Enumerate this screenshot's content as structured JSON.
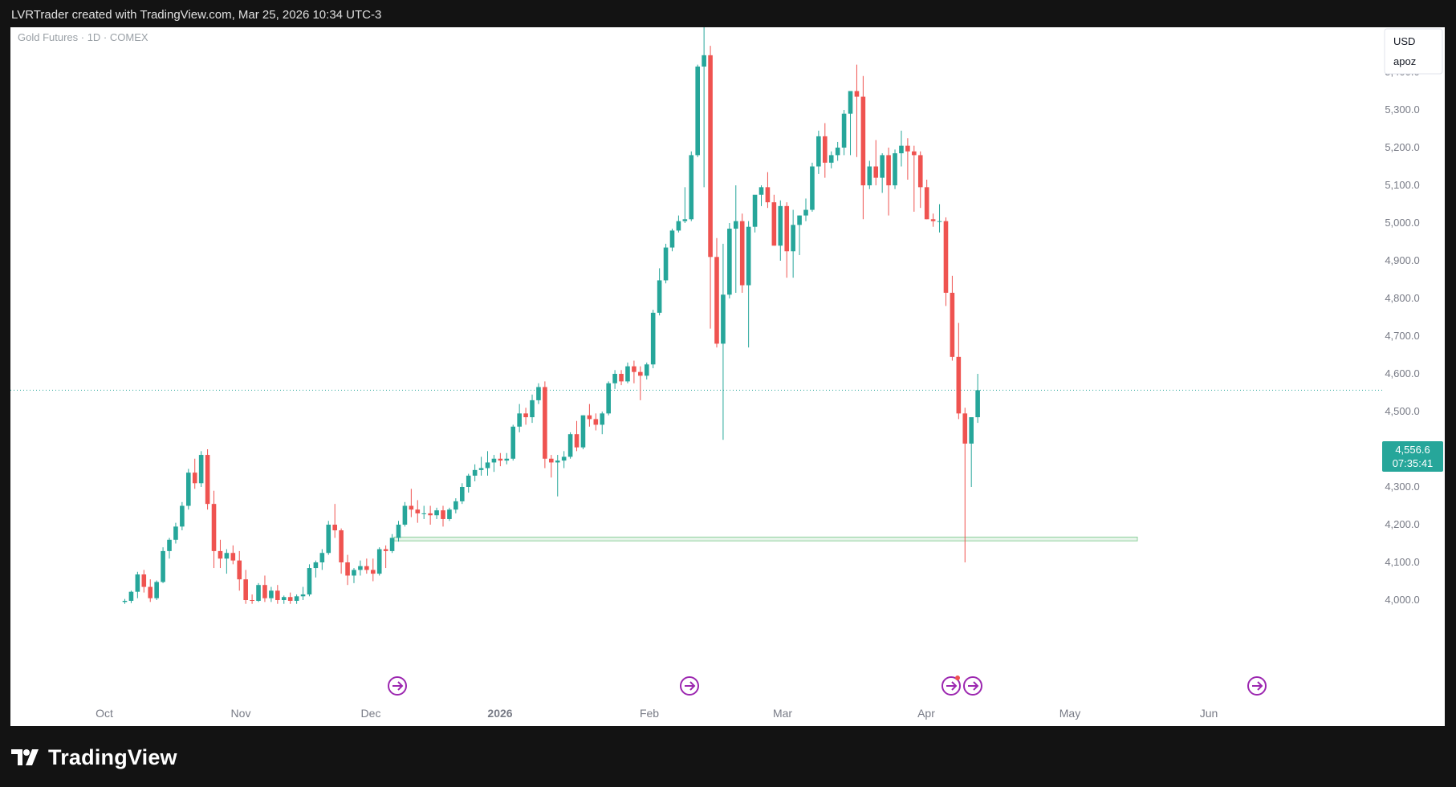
{
  "header": {
    "text": "LVRTrader created with TradingView.com, Mar 25, 2026 10:34 UTC-3"
  },
  "chart": {
    "symbol_label": "Gold Futures · 1D · COMEX",
    "currency_button": "USD",
    "indicator_button": "apoz",
    "last_price_label": "4,556.6",
    "countdown_label": "07:35:41",
    "colors": {
      "up": "#26a69a",
      "down": "#ef5350",
      "price_line": "#26a69a",
      "zone_fill": "#e6f4e9",
      "zone_border": "#8fd19e",
      "event_icon": "#9c27b0"
    }
  },
  "footer": {
    "brand": "TradingView"
  },
  "chart_data": {
    "type": "candlestick",
    "title": "Gold Futures · 1D · COMEX",
    "x_tick_labels": [
      "Oct",
      "Nov",
      "Dec",
      "2026",
      "Feb",
      "Mar",
      "Apr",
      "May",
      "Jun"
    ],
    "y_tick_labels": [
      "4,000.0",
      "4,100.0",
      "4,200.0",
      "4,300.0",
      "4,400.0",
      "4,500.0",
      "4,600.0",
      "4,700.0",
      "4,800.0",
      "4,900.0",
      "5,000.0",
      "5,100.0",
      "5,200.0",
      "5,300.0",
      "5,400.0"
    ],
    "ylim": [
      3990,
      5540
    ],
    "last_price": 4556.6,
    "support_zone": [
      4157,
      4167
    ],
    "candles_ohlc": [
      [
        3995,
        4003,
        3990,
        3998
      ],
      [
        3998,
        4025,
        3992,
        4022
      ],
      [
        4022,
        4075,
        4005,
        4068
      ],
      [
        4068,
        4080,
        4020,
        4035
      ],
      [
        4035,
        4055,
        3995,
        4005
      ],
      [
        4005,
        4052,
        4000,
        4048
      ],
      [
        4048,
        4140,
        4045,
        4130
      ],
      [
        4130,
        4165,
        4110,
        4160
      ],
      [
        4160,
        4205,
        4150,
        4195
      ],
      [
        4195,
        4260,
        4185,
        4250
      ],
      [
        4250,
        4348,
        4240,
        4338
      ],
      [
        4338,
        4375,
        4295,
        4310
      ],
      [
        4310,
        4395,
        4300,
        4385
      ],
      [
        4385,
        4400,
        4240,
        4255
      ],
      [
        4255,
        4290,
        4085,
        4130
      ],
      [
        4130,
        4160,
        4085,
        4110
      ],
      [
        4110,
        4135,
        4070,
        4125
      ],
      [
        4125,
        4145,
        4095,
        4105
      ],
      [
        4105,
        4130,
        4025,
        4055
      ],
      [
        4055,
        4080,
        3990,
        4000
      ],
      [
        4000,
        4015,
        3990,
        3998
      ],
      [
        3998,
        4045,
        3995,
        4040
      ],
      [
        4040,
        4065,
        3995,
        4005
      ],
      [
        4005,
        4035,
        3995,
        4025
      ],
      [
        4025,
        4040,
        3990,
        4000
      ],
      [
        4000,
        4012,
        3990,
        4008
      ],
      [
        4008,
        4020,
        3990,
        3998
      ],
      [
        3998,
        4015,
        3990,
        4010
      ],
      [
        4010,
        4035,
        4000,
        4015
      ],
      [
        4015,
        4095,
        4010,
        4085
      ],
      [
        4085,
        4105,
        4060,
        4100
      ],
      [
        4100,
        4135,
        4080,
        4125
      ],
      [
        4125,
        4210,
        4120,
        4200
      ],
      [
        4200,
        4255,
        4165,
        4185
      ],
      [
        4185,
        4190,
        4070,
        4100
      ],
      [
        4100,
        4120,
        4040,
        4065
      ],
      [
        4065,
        4085,
        4045,
        4080
      ],
      [
        4080,
        4105,
        4065,
        4090
      ],
      [
        4090,
        4110,
        4070,
        4080
      ],
      [
        4080,
        4110,
        4050,
        4070
      ],
      [
        4070,
        4140,
        4065,
        4135
      ],
      [
        4135,
        4145,
        4085,
        4130
      ],
      [
        4130,
        4175,
        4125,
        4165
      ],
      [
        4165,
        4210,
        4155,
        4200
      ],
      [
        4200,
        4260,
        4195,
        4250
      ],
      [
        4250,
        4295,
        4220,
        4240
      ],
      [
        4240,
        4265,
        4205,
        4230
      ],
      [
        4230,
        4250,
        4215,
        4230
      ],
      [
        4230,
        4250,
        4200,
        4225
      ],
      [
        4225,
        4245,
        4215,
        4238
      ],
      [
        4238,
        4250,
        4195,
        4215
      ],
      [
        4215,
        4245,
        4210,
        4240
      ],
      [
        4240,
        4270,
        4230,
        4262
      ],
      [
        4262,
        4310,
        4255,
        4300
      ],
      [
        4300,
        4335,
        4285,
        4330
      ],
      [
        4330,
        4360,
        4315,
        4345
      ],
      [
        4345,
        4380,
        4330,
        4350
      ],
      [
        4350,
        4395,
        4330,
        4365
      ],
      [
        4365,
        4385,
        4340,
        4375
      ],
      [
        4375,
        4390,
        4355,
        4370
      ],
      [
        4370,
        4390,
        4360,
        4375
      ],
      [
        4375,
        4465,
        4370,
        4460
      ],
      [
        4460,
        4520,
        4445,
        4495
      ],
      [
        4495,
        4510,
        4465,
        4485
      ],
      [
        4485,
        4545,
        4470,
        4530
      ],
      [
        4530,
        4575,
        4520,
        4565
      ],
      [
        4565,
        4580,
        4350,
        4375
      ],
      [
        4375,
        4385,
        4325,
        4365
      ],
      [
        4365,
        4385,
        4275,
        4370
      ],
      [
        4370,
        4395,
        4350,
        4380
      ],
      [
        4380,
        4445,
        4375,
        4440
      ],
      [
        4440,
        4475,
        4395,
        4405
      ],
      [
        4405,
        4490,
        4400,
        4490
      ],
      [
        4490,
        4520,
        4460,
        4480
      ],
      [
        4480,
        4495,
        4450,
        4465
      ],
      [
        4465,
        4500,
        4440,
        4495
      ],
      [
        4495,
        4580,
        4490,
        4575
      ],
      [
        4575,
        4610,
        4560,
        4600
      ],
      [
        4600,
        4610,
        4570,
        4580
      ],
      [
        4580,
        4630,
        4575,
        4620
      ],
      [
        4620,
        4635,
        4575,
        4605
      ],
      [
        4605,
        4620,
        4530,
        4595
      ],
      [
        4595,
        4630,
        4585,
        4625
      ],
      [
        4625,
        4770,
        4615,
        4762
      ],
      [
        4762,
        4880,
        4755,
        4848
      ],
      [
        4848,
        4945,
        4840,
        4935
      ],
      [
        4935,
        4985,
        4925,
        4980
      ],
      [
        4980,
        5020,
        4975,
        5005
      ],
      [
        5005,
        5095,
        5000,
        5010
      ],
      [
        5010,
        5190,
        5005,
        5180
      ],
      [
        5180,
        5420,
        5175,
        5415
      ],
      [
        5415,
        5540,
        5095,
        5445
      ],
      [
        5445,
        5470,
        4720,
        4910
      ],
      [
        4910,
        4960,
        4670,
        4680
      ],
      [
        4680,
        4945,
        4425,
        4810
      ],
      [
        4810,
        5000,
        4800,
        4985
      ],
      [
        4985,
        5100,
        4815,
        5005
      ],
      [
        5005,
        5025,
        4815,
        4835
      ],
      [
        4835,
        5005,
        4670,
        4990
      ],
      [
        4990,
        5070,
        4975,
        5075
      ],
      [
        5075,
        5100,
        5045,
        5095
      ],
      [
        5095,
        5135,
        5040,
        5055
      ],
      [
        5055,
        5075,
        4940,
        4940
      ],
      [
        4940,
        5060,
        4900,
        5045
      ],
      [
        5045,
        5055,
        4855,
        4925
      ],
      [
        4925,
        5035,
        4855,
        4995
      ],
      [
        4995,
        5020,
        4915,
        5020
      ],
      [
        5020,
        5065,
        5005,
        5035
      ],
      [
        5035,
        5160,
        5030,
        5150
      ],
      [
        5150,
        5245,
        5130,
        5230
      ],
      [
        5230,
        5265,
        5120,
        5160
      ],
      [
        5160,
        5190,
        5145,
        5180
      ],
      [
        5180,
        5215,
        5165,
        5200
      ],
      [
        5200,
        5300,
        5180,
        5290
      ],
      [
        5290,
        5320,
        5180,
        5350
      ],
      [
        5350,
        5420,
        5175,
        5335
      ],
      [
        5335,
        5390,
        5010,
        5100
      ],
      [
        5100,
        5165,
        5090,
        5150
      ],
      [
        5150,
        5220,
        5100,
        5120
      ],
      [
        5120,
        5185,
        5080,
        5180
      ],
      [
        5180,
        5200,
        5020,
        5100
      ],
      [
        5100,
        5195,
        5090,
        5185
      ],
      [
        5185,
        5245,
        5150,
        5205
      ],
      [
        5205,
        5225,
        5115,
        5190
      ],
      [
        5190,
        5205,
        5030,
        5180
      ],
      [
        5180,
        5190,
        5040,
        5095
      ],
      [
        5095,
        5115,
        5010,
        5010
      ],
      [
        5010,
        5025,
        4990,
        5005
      ],
      [
        5005,
        5050,
        4975,
        5005
      ],
      [
        5005,
        5015,
        4780,
        4815
      ],
      [
        4815,
        4860,
        4635,
        4645
      ],
      [
        4645,
        4735,
        4480,
        4495
      ],
      [
        4495,
        4510,
        4100,
        4415
      ],
      [
        4415,
        4480,
        4300,
        4485
      ],
      [
        4485,
        4600,
        4470,
        4556.6
      ]
    ]
  }
}
